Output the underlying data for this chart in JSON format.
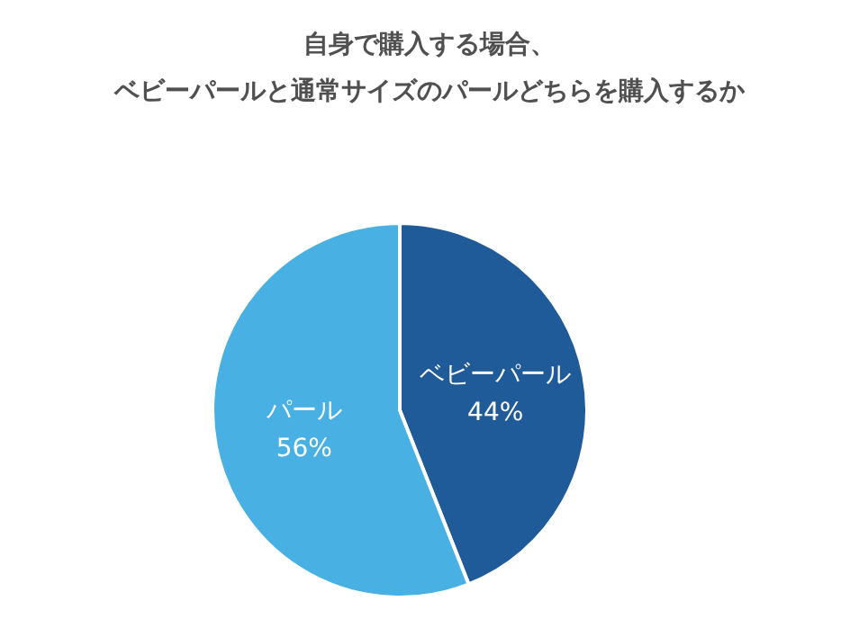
{
  "chart_data": {
    "type": "pie",
    "title": "自身で購入する場合、",
    "subtitle": "ベビーパールと通常サイズのパールどちらを購入するか",
    "categories": [
      "ベビーパール",
      "パール"
    ],
    "values": [
      44,
      56
    ],
    "value_labels": [
      "44%",
      "56%"
    ],
    "colors": [
      "#1f5b99",
      "#48b0e2"
    ]
  }
}
